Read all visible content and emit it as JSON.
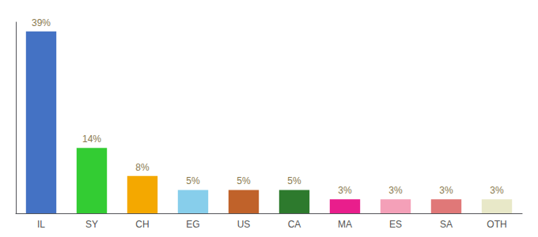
{
  "chart_data": {
    "type": "bar",
    "categories": [
      "IL",
      "SY",
      "CH",
      "EG",
      "US",
      "CA",
      "MA",
      "ES",
      "SA",
      "OTH"
    ],
    "values": [
      39,
      14,
      8,
      5,
      5,
      5,
      3,
      3,
      3,
      3
    ],
    "value_labels": [
      "39%",
      "14%",
      "8%",
      "5%",
      "5%",
      "5%",
      "3%",
      "3%",
      "3%",
      "3%"
    ],
    "colors": [
      "#4472c4",
      "#33cc33",
      "#f4a800",
      "#87ceeb",
      "#c0622a",
      "#2d7a2d",
      "#e91e8c",
      "#f4a0b8",
      "#e07878",
      "#e8e8c8"
    ],
    "ylim": [
      0,
      41
    ],
    "data_labels": true,
    "tick_labels": "x",
    "grid": false
  }
}
